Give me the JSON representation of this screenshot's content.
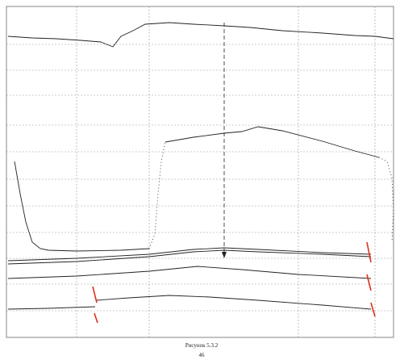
{
  "figure": {
    "caption": "Рисунок 5.3.2",
    "page": "46"
  }
}
